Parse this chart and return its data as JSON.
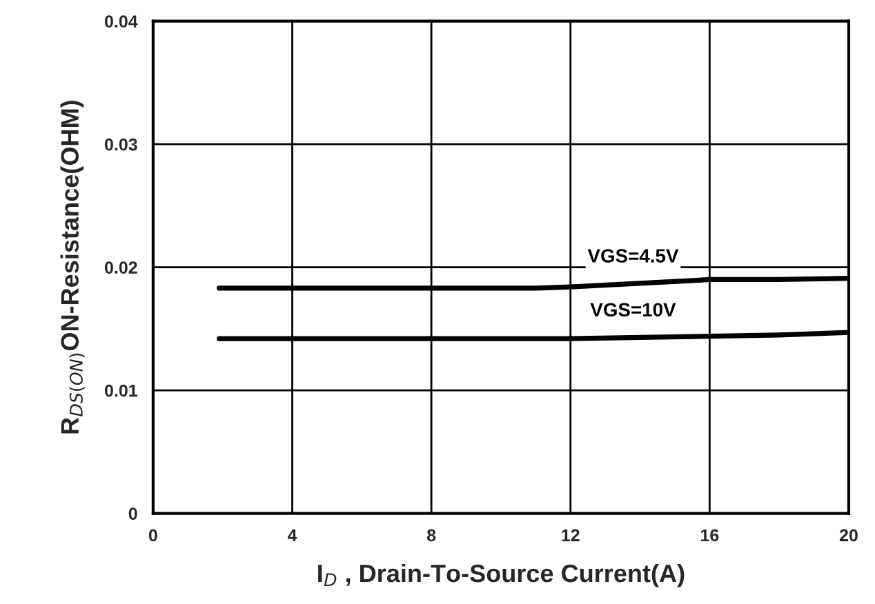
{
  "chart_data": {
    "type": "line",
    "xlabel": "I$_{D}$ , Drain-To-Source Current(A)",
    "ylabel": "R$_{DS(ON)}$ON-Resistance(OHM)",
    "series": [
      {
        "name": "VGS=4.5V",
        "color": "#000000",
        "x": [
          1.9,
          4,
          8,
          11,
          12,
          14,
          16,
          18,
          20
        ],
        "values": [
          0.0183,
          0.0183,
          0.0183,
          0.0183,
          0.0184,
          0.0187,
          0.019,
          0.019,
          0.0191
        ]
      },
      {
        "name": "VGS=10V",
        "color": "#000000",
        "x": [
          1.9,
          4,
          8,
          12,
          14,
          16,
          18,
          20
        ],
        "values": [
          0.0142,
          0.0142,
          0.0142,
          0.0142,
          0.0143,
          0.0144,
          0.0145,
          0.0147
        ]
      }
    ],
    "xlim": [
      0,
      20
    ],
    "xticks": [
      0,
      4,
      8,
      12,
      16,
      20
    ],
    "ylim": [
      0,
      0.04
    ],
    "yticks": [
      0,
      0.01,
      0.02,
      0.03,
      0.04
    ],
    "grid": true,
    "line_style": "solid"
  }
}
